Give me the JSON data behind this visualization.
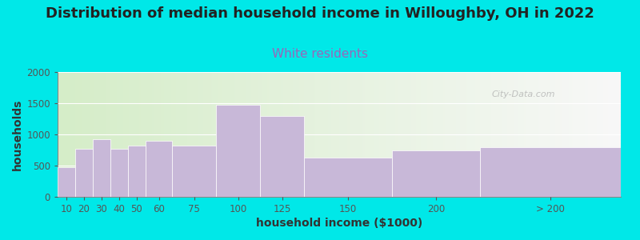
{
  "title": "Distribution of median household income in Willoughby, OH in 2022",
  "subtitle": "White residents",
  "xlabel": "household income ($1000)",
  "ylabel": "households",
  "bar_labels": [
    "10",
    "20",
    "30",
    "40",
    "50",
    "60",
    "75",
    "100",
    "125",
    "150",
    "200",
    "> 200"
  ],
  "bar_heights": [
    475,
    775,
    925,
    775,
    825,
    900,
    825,
    1475,
    1300,
    625,
    750,
    800
  ],
  "bar_widths": [
    10,
    10,
    10,
    10,
    10,
    15,
    25,
    25,
    25,
    50,
    50,
    80
  ],
  "bar_lefts": [
    10,
    20,
    30,
    40,
    50,
    60,
    75,
    100,
    125,
    150,
    200,
    250
  ],
  "bar_color": "#c8b8d8",
  "bar_edgecolor": "#ffffff",
  "background_outer": "#00e8e8",
  "plot_bg_left": "#d5edc8",
  "plot_bg_right": "#f8f8f8",
  "title_fontsize": 13,
  "title_color": "#222222",
  "subtitle_color": "#9966bb",
  "subtitle_fontsize": 11,
  "ylabel_fontsize": 10,
  "xlabel_fontsize": 10,
  "yticks": [
    0,
    500,
    1000,
    1500,
    2000
  ],
  "ylim": [
    0,
    2000
  ],
  "watermark": "City-Data.com",
  "xlim_left": 10,
  "xlim_right": 330
}
